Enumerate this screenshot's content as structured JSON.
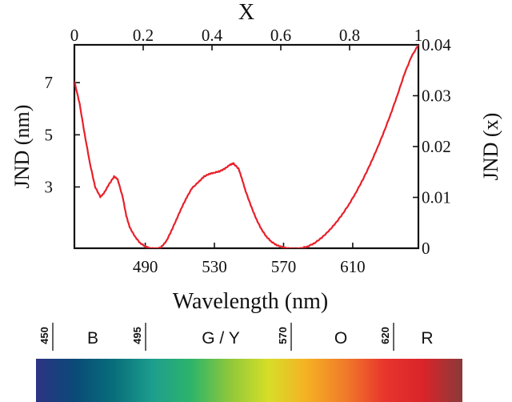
{
  "chart_data": {
    "type": "line",
    "title": "",
    "top_axis": {
      "label": "X",
      "ticks": [
        "0",
        "0.2",
        "0.4",
        "0.6",
        "0.8",
        "1"
      ],
      "tick_values": [
        0,
        0.2,
        0.4,
        0.6,
        0.8,
        1.0
      ],
      "range": [
        0,
        1
      ]
    },
    "x_axis": {
      "label": "Wavelength (nm)",
      "ticks": [
        "490",
        "530",
        "570",
        "610"
      ],
      "tick_values": [
        490,
        530,
        570,
        610
      ],
      "range": [
        449,
        648
      ]
    },
    "y_axis_left": {
      "label": "JND (nm)",
      "ticks": [
        "3",
        "5",
        "7"
      ],
      "tick_values": [
        3,
        5,
        7
      ],
      "range": [
        0.65,
        8.45
      ]
    },
    "y_axis_right": {
      "label": "JND (x)",
      "ticks": [
        "0",
        "0.01",
        "0.02",
        "0.03",
        "0.04"
      ],
      "tick_values": [
        0,
        0.01,
        0.02,
        0.03,
        0.04
      ],
      "range": [
        0,
        0.04
      ]
    },
    "series": [
      {
        "name": "JND",
        "color": "#e8202a",
        "x": [
          449,
          452,
          455,
          458,
          461,
          464,
          466,
          469,
          472,
          474,
          477,
          479,
          481,
          484,
          487,
          490,
          493,
          496,
          499,
          502,
          505,
          508,
          511,
          514,
          517,
          521,
          524,
          527,
          530,
          533,
          536,
          539,
          541,
          544,
          546,
          548,
          551,
          554,
          557,
          560,
          563,
          566,
          569,
          572,
          576,
          580,
          584,
          588,
          592,
          596,
          600,
          604,
          608,
          612,
          616,
          620,
          624,
          628,
          632,
          636,
          640,
          644,
          648
        ],
        "y": [
          7.05,
          6.2,
          5.0,
          3.9,
          3.0,
          2.62,
          2.75,
          3.1,
          3.4,
          3.3,
          2.6,
          1.9,
          1.45,
          1.1,
          0.85,
          0.72,
          0.65,
          0.63,
          0.68,
          0.9,
          1.3,
          1.75,
          2.2,
          2.6,
          2.95,
          3.2,
          3.4,
          3.5,
          3.55,
          3.6,
          3.7,
          3.85,
          3.9,
          3.7,
          3.3,
          2.85,
          2.3,
          1.8,
          1.4,
          1.1,
          0.9,
          0.77,
          0.7,
          0.65,
          0.63,
          0.65,
          0.72,
          0.85,
          1.05,
          1.3,
          1.6,
          1.95,
          2.35,
          2.8,
          3.3,
          3.85,
          4.45,
          5.1,
          5.8,
          6.55,
          7.35,
          8.0,
          8.45
        ]
      }
    ]
  },
  "spectrum": {
    "boundaries": [
      "450",
      "495",
      "570",
      "620"
    ],
    "regions": [
      "B",
      "G / Y",
      "O",
      "R"
    ],
    "gradient_colors": [
      "#2d3384",
      "#0a4a78",
      "#086e7a",
      "#1c9e8e",
      "#2db46a",
      "#8fc83a",
      "#d7de28",
      "#f5b024",
      "#f07a2a",
      "#e8352c",
      "#d9242a",
      "#8a3a3a"
    ]
  }
}
